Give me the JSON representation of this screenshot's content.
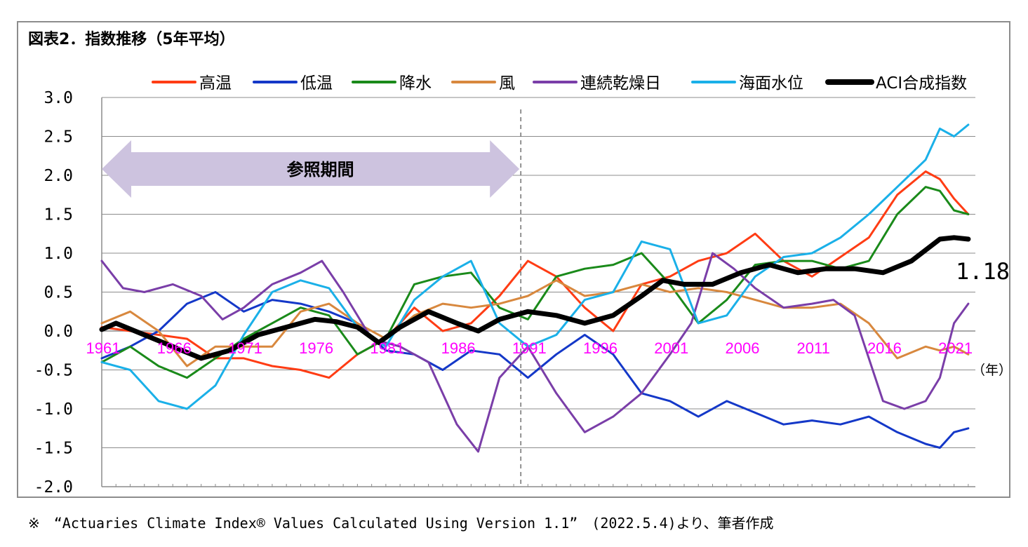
{
  "title": "図表2．指数推移（5年平均）",
  "footnote": "※　“Actuaries Climate Index® Values Calculated Using Version 1.1”　(2022.5.4)より、筆者作成",
  "chart_data": {
    "type": "line",
    "title": "図表2．指数推移（5年平均）",
    "x_unit": "（年）",
    "xlim": [
      1961,
      2022.5
    ],
    "ylim": [
      -2.0,
      3.0
    ],
    "y_ticks": [
      "3.0",
      "2.5",
      "2.0",
      "1.5",
      "1.0",
      "0.5",
      "0.0",
      "-0.5",
      "-1.0",
      "-1.5",
      "-2.0"
    ],
    "y_tick_values": [
      3.0,
      2.5,
      2.0,
      1.5,
      1.0,
      0.5,
      0.0,
      -0.5,
      -1.0,
      -1.5,
      -2.0
    ],
    "x_ticks": [
      "1961",
      "1966",
      "1971",
      "1976",
      "1981",
      "1986",
      "1991",
      "1996",
      "2001",
      "2006",
      "2011",
      "2016",
      "2021"
    ],
    "x_tick_values": [
      1961,
      1966,
      1971,
      1976,
      1981,
      1986,
      1991,
      1996,
      2001,
      2006,
      2011,
      2016,
      2021
    ],
    "legend_placement": "top",
    "reference_period": {
      "label": "参照期間",
      "start": 1961,
      "end": 1990.5
    },
    "end_label": "1.18",
    "series": [
      {
        "name": "高温",
        "color": "#ff3c14",
        "width": 3,
        "x": [
          1961,
          1963,
          1965,
          1967,
          1969,
          1971,
          1973,
          1975,
          1977,
          1979,
          1981,
          1983,
          1985,
          1987,
          1989,
          1991,
          1993,
          1995,
          1997,
          1999,
          2001,
          2003,
          2005,
          2007,
          2009,
          2011,
          2013,
          2015,
          2017,
          2019,
          2020,
          2021,
          2022
        ],
        "y": [
          0.05,
          0.0,
          -0.05,
          -0.1,
          -0.35,
          -0.35,
          -0.45,
          -0.5,
          -0.6,
          -0.3,
          -0.1,
          0.3,
          0.0,
          0.1,
          0.45,
          0.9,
          0.7,
          0.3,
          0.0,
          0.6,
          0.7,
          0.9,
          1.0,
          1.25,
          0.9,
          0.7,
          0.95,
          1.2,
          1.75,
          2.05,
          1.95,
          1.7,
          1.5
        ]
      },
      {
        "name": "低温",
        "color": "#1438c8",
        "width": 3,
        "x": [
          1961,
          1963,
          1965,
          1967,
          1969,
          1971,
          1973,
          1975,
          1977,
          1979,
          1981,
          1983,
          1985,
          1987,
          1989,
          1991,
          1993,
          1995,
          1997,
          1999,
          2001,
          2003,
          2005,
          2007,
          2009,
          2011,
          2013,
          2015,
          2017,
          2019,
          2020,
          2021,
          2022
        ],
        "y": [
          -0.35,
          -0.2,
          0.0,
          0.35,
          0.5,
          0.25,
          0.4,
          0.35,
          0.25,
          0.1,
          -0.25,
          -0.3,
          -0.5,
          -0.25,
          -0.3,
          -0.6,
          -0.3,
          -0.05,
          -0.3,
          -0.8,
          -0.9,
          -1.1,
          -0.9,
          -1.05,
          -1.2,
          -1.15,
          -1.2,
          -1.1,
          -1.3,
          -1.45,
          -1.5,
          -1.3,
          -1.25
        ]
      },
      {
        "name": "降水",
        "color": "#1a8a1a",
        "width": 3,
        "x": [
          1961,
          1963,
          1965,
          1967,
          1969,
          1971,
          1973,
          1975,
          1977,
          1979,
          1981,
          1983,
          1985,
          1987,
          1989,
          1991,
          1993,
          1995,
          1997,
          1999,
          2001,
          2003,
          2005,
          2007,
          2009,
          2011,
          2013,
          2015,
          2017,
          2019,
          2020,
          2021,
          2022
        ],
        "y": [
          -0.4,
          -0.2,
          -0.45,
          -0.6,
          -0.35,
          -0.1,
          0.1,
          0.3,
          0.2,
          -0.3,
          -0.1,
          0.6,
          0.7,
          0.75,
          0.3,
          0.15,
          0.7,
          0.8,
          0.85,
          1.0,
          0.6,
          0.1,
          0.4,
          0.85,
          0.9,
          0.9,
          0.8,
          0.9,
          1.5,
          1.85,
          1.8,
          1.55,
          1.5
        ]
      },
      {
        "name": "風",
        "color": "#d8883e",
        "width": 3,
        "x": [
          1961,
          1963,
          1965,
          1967,
          1969,
          1971,
          1973,
          1975,
          1977,
          1979,
          1981,
          1983,
          1985,
          1987,
          1989,
          1991,
          1993,
          1995,
          1997,
          1999,
          2001,
          2003,
          2005,
          2007,
          2009,
          2011,
          2013,
          2015,
          2017,
          2019,
          2020,
          2021,
          2022
        ],
        "y": [
          0.1,
          0.25,
          0.0,
          -0.45,
          -0.2,
          -0.2,
          -0.2,
          0.25,
          0.35,
          0.1,
          -0.1,
          0.2,
          0.35,
          0.3,
          0.35,
          0.45,
          0.65,
          0.45,
          0.5,
          0.6,
          0.5,
          0.55,
          0.5,
          0.4,
          0.3,
          0.3,
          0.35,
          0.1,
          -0.35,
          -0.2,
          -0.25,
          -0.2,
          -0.3
        ]
      },
      {
        "name": "連続乾燥日",
        "color": "#7a3ea8",
        "width": 3,
        "x": [
          1961,
          1962.5,
          1964,
          1966,
          1968,
          1969.5,
          1971,
          1973,
          1975,
          1976.5,
          1978,
          1980,
          1982,
          1984,
          1986,
          1987.5,
          1989,
          1991,
          1993,
          1995,
          1997,
          1999,
          2001,
          2002.5,
          2004,
          2005.5,
          2007,
          2009,
          2011,
          2012.5,
          2014,
          2016,
          2017.5,
          2019,
          2020,
          2021,
          2022
        ],
        "y": [
          0.9,
          0.55,
          0.5,
          0.6,
          0.45,
          0.15,
          0.3,
          0.6,
          0.75,
          0.9,
          0.5,
          -0.1,
          -0.2,
          -0.4,
          -1.2,
          -1.55,
          -0.6,
          -0.2,
          -0.8,
          -1.3,
          -1.1,
          -0.8,
          -0.3,
          0.1,
          1.0,
          0.8,
          0.55,
          0.3,
          0.35,
          0.4,
          0.2,
          -0.9,
          -1.0,
          -0.9,
          -0.6,
          0.1,
          0.35
        ]
      },
      {
        "name": "海面水位",
        "color": "#1ab0e8",
        "width": 3,
        "x": [
          1961,
          1963,
          1965,
          1967,
          1969,
          1971,
          1973,
          1975,
          1977,
          1979,
          1981,
          1983,
          1985,
          1987,
          1989,
          1991,
          1993,
          1995,
          1997,
          1999,
          2001,
          2003,
          2005,
          2007,
          2009,
          2011,
          2013,
          2015,
          2017,
          2019,
          2020,
          2021,
          2022
        ],
        "y": [
          -0.4,
          -0.5,
          -0.9,
          -1.0,
          -0.7,
          -0.05,
          0.5,
          0.65,
          0.55,
          0.05,
          -0.2,
          0.4,
          0.7,
          0.9,
          0.1,
          -0.2,
          -0.05,
          0.4,
          0.5,
          1.15,
          1.05,
          0.1,
          0.2,
          0.7,
          0.95,
          1.0,
          1.2,
          1.5,
          1.85,
          2.2,
          2.6,
          2.5,
          2.65
        ]
      },
      {
        "name": "ACI合成指数",
        "color": "#000000",
        "width": 7,
        "x": [
          1961,
          1962,
          1964,
          1966,
          1968,
          1970,
          1972,
          1974,
          1976,
          1977.5,
          1979,
          1980.5,
          1982,
          1984,
          1986,
          1987.5,
          1989,
          1991,
          1993,
          1995,
          1997,
          1999,
          2000.5,
          2002,
          2004,
          2006,
          2008,
          2010,
          2012,
          2014,
          2016,
          2018,
          2020,
          2021,
          2022
        ],
        "y": [
          0.02,
          0.1,
          -0.05,
          -0.2,
          -0.35,
          -0.25,
          -0.05,
          0.05,
          0.15,
          0.12,
          0.05,
          -0.15,
          0.05,
          0.25,
          0.1,
          0.0,
          0.15,
          0.25,
          0.2,
          0.1,
          0.2,
          0.45,
          0.65,
          0.6,
          0.6,
          0.75,
          0.85,
          0.75,
          0.8,
          0.8,
          0.75,
          0.9,
          1.18,
          1.2,
          1.18
        ]
      }
    ]
  }
}
